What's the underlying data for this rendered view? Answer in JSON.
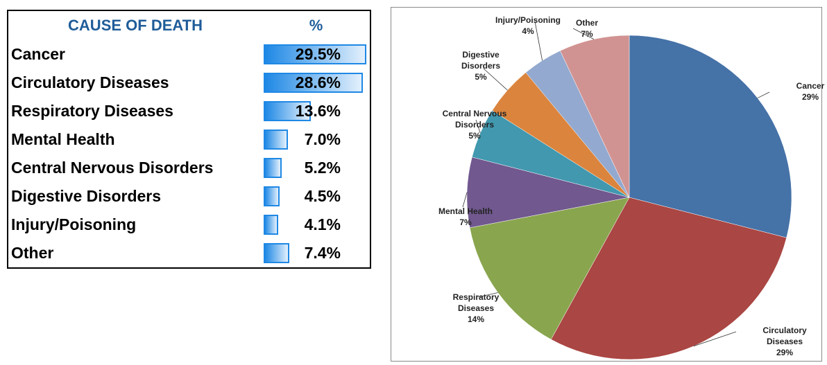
{
  "table": {
    "header": [
      "CAUSE OF DEATH",
      "%"
    ],
    "rows": [
      {
        "cause": "Cancer",
        "value": 29.5,
        "label": "29.5%"
      },
      {
        "cause": "Circulatory Diseases",
        "value": 28.6,
        "label": "28.6%"
      },
      {
        "cause": "Respiratory Diseases",
        "value": 13.6,
        "label": "13.6%"
      },
      {
        "cause": "Mental Health",
        "value": 7.0,
        "label": "7.0%"
      },
      {
        "cause": "Central Nervous Disorders",
        "value": 5.2,
        "label": "5.2%"
      },
      {
        "cause": "Digestive Disorders",
        "value": 4.5,
        "label": "4.5%"
      },
      {
        "cause": "Injury/Poisoning",
        "value": 4.1,
        "label": "4.1%"
      },
      {
        "cause": "Other",
        "value": 7.4,
        "label": "7.4%"
      }
    ]
  },
  "chart_data": {
    "type": "pie",
    "categories": [
      "Cancer",
      "Circulatory Diseases",
      "Respiratory Diseases",
      "Mental Health",
      "Central Nervous Disorders",
      "Digestive Disorders",
      "Injury/Poisoning",
      "Other"
    ],
    "values": [
      29,
      29,
      14,
      7,
      5,
      5,
      4,
      7
    ],
    "value_labels": [
      "29%",
      "29%",
      "14%",
      "7%",
      "5%",
      "5%",
      "4%",
      "7%"
    ],
    "colors": [
      "#4572a7",
      "#aa4643",
      "#89a54e",
      "#71588f",
      "#4198af",
      "#db843d",
      "#93a9cf",
      "#d19392"
    ]
  }
}
